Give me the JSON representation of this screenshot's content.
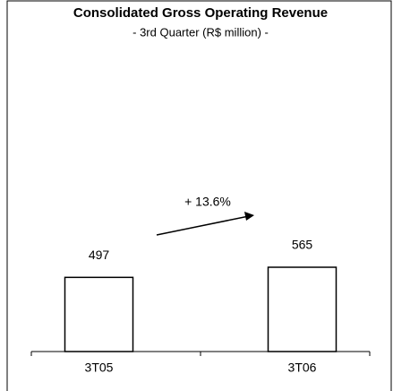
{
  "chart_data": {
    "type": "bar",
    "title": "Consolidated Gross Operating Revenue",
    "subtitle": "- 3rd Quarter (R$ million) -",
    "categories": [
      "3T05",
      "3T06"
    ],
    "values": [
      497,
      565
    ],
    "color": "#ffffff",
    "annotation": "+ 13.6%"
  }
}
